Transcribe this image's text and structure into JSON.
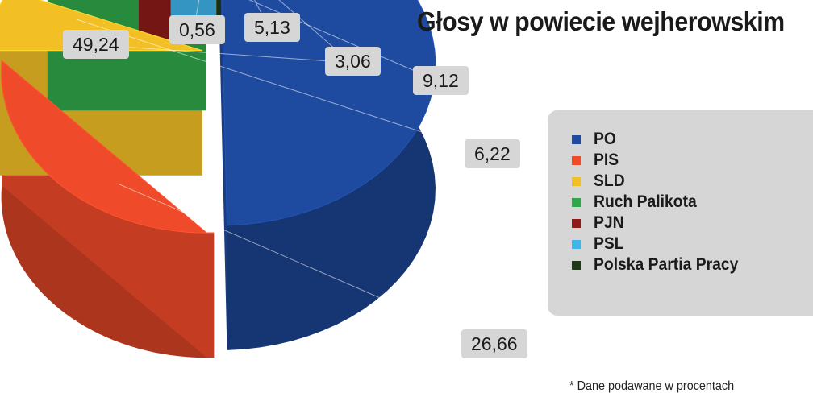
{
  "chart_data": {
    "type": "pie",
    "title": "Głosy w powiecie wejherowskim",
    "footnote": "* Dane podawane w procentach",
    "categories": [
      "PO",
      "PIS",
      "SLD",
      "Ruch Palikota",
      "PJN",
      "PSL",
      "Polska Partia Pracy"
    ],
    "values": [
      49.24,
      26.66,
      6.22,
      9.12,
      3.06,
      5.13,
      0.56
    ],
    "value_labels": [
      "49,24",
      "26,66",
      "6,22",
      "9,12",
      "3,06",
      "5,13",
      "0,56"
    ],
    "colors": [
      "#1e4aa0",
      "#ef4a2a",
      "#f2c025",
      "#2fa84a",
      "#8e1b17",
      "#3fb5ec",
      "#1f3a18"
    ],
    "legend_position": "right"
  }
}
